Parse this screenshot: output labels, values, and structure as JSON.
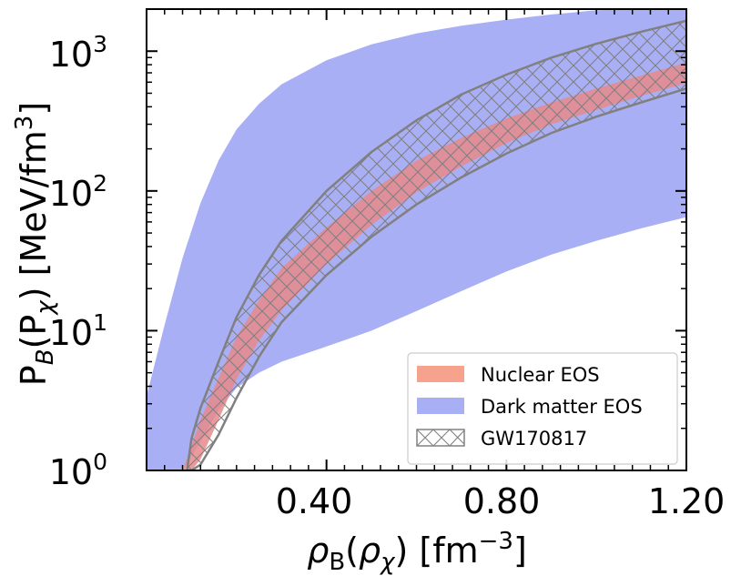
{
  "chart_data": {
    "type": "area",
    "title": "",
    "xlabel": "ρB(ρχ) [fm⁻³]",
    "ylabel": "PB(Pχ) [MeV/fm³]",
    "xlim": [
      0.0,
      1.2
    ],
    "ylim": [
      1,
      2000
    ],
    "yscale": "log",
    "x_ticks": [
      {
        "value": 0.4,
        "label": "0.40"
      },
      {
        "value": 0.8,
        "label": "0.80"
      },
      {
        "value": 1.2,
        "label": "1.20"
      }
    ],
    "y_ticks": [
      {
        "value": 1,
        "base": "10",
        "exp": "0"
      },
      {
        "value": 10,
        "base": "10",
        "exp": "1"
      },
      {
        "value": 100,
        "base": "10",
        "exp": "2"
      },
      {
        "value": 1000,
        "base": "10",
        "exp": "3"
      }
    ],
    "x_label_parts": {
      "rho": "ρ",
      "sub_b": "B",
      "rho2": "ρ",
      "chi": "χ",
      "unit": "fm",
      "exp": "−3"
    },
    "y_label_parts": {
      "p": "P",
      "sub_b": "B",
      "p2": "P",
      "chi": "χ",
      "unit": "MeV/fm",
      "exp": "3"
    },
    "series": [
      {
        "name": "Dark matter EOS",
        "color": "#a9aff5",
        "x": [
          0.0,
          0.04,
          0.08,
          0.12,
          0.16,
          0.2,
          0.25,
          0.3,
          0.4,
          0.5,
          0.6,
          0.7,
          0.8,
          0.9,
          1.0,
          1.1,
          1.2
        ],
        "lower": [
          1.0,
          1.0,
          1.0,
          1.6,
          2.7,
          3.9,
          5.0,
          6.0,
          7.7,
          10.0,
          13.8,
          19.2,
          26.5,
          35.0,
          44.0,
          54.0,
          65.0
        ],
        "upper": [
          3.4,
          11.0,
          33.0,
          82.0,
          165.0,
          275.0,
          420.0,
          580.0,
          860.0,
          1120.0,
          1340.0,
          1520.0,
          1680.0,
          1830.0,
          1960.0,
          2000.0,
          2000.0
        ]
      },
      {
        "name": "Nuclear EOS",
        "color": "#f7a28c",
        "x": [
          0.08,
          0.1,
          0.12,
          0.16,
          0.2,
          0.25,
          0.3,
          0.4,
          0.5,
          0.6,
          0.7,
          0.8,
          0.9,
          1.0,
          1.1,
          1.2
        ],
        "lower": [
          1.0,
          1.0,
          1.2,
          2.3,
          4.5,
          8.5,
          14.0,
          30.0,
          57.0,
          98.0,
          150.0,
          220.0,
          300.0,
          380.0,
          480.0,
          590.0
        ],
        "upper": [
          1.0,
          1.5,
          2.3,
          4.6,
          9.0,
          16.5,
          28.0,
          55.0,
          100.0,
          165.0,
          240.0,
          330.0,
          430.0,
          540.0,
          670.0,
          830.0
        ]
      },
      {
        "name": "GW170817",
        "color": "#808080",
        "x": [
          0.09,
          0.1,
          0.12,
          0.16,
          0.2,
          0.25,
          0.3,
          0.4,
          0.5,
          0.6,
          0.7,
          0.8,
          0.9,
          1.0,
          1.1,
          1.2
        ],
        "lower": [
          1.0,
          1.0,
          1.1,
          1.8,
          3.3,
          6.5,
          11.5,
          25.0,
          47.0,
          80.0,
          125.0,
          185.0,
          260.0,
          340.0,
          430.0,
          540.0
        ],
        "upper": [
          1.0,
          1.7,
          2.8,
          6.0,
          12.5,
          25.0,
          44.0,
          100.0,
          190.0,
          320.0,
          490.0,
          680.0,
          900.0,
          1130.0,
          1380.0,
          1650.0
        ]
      }
    ],
    "legend": {
      "location": "lower-right",
      "entries": [
        "Nuclear EOS",
        "Dark matter EOS",
        "GW170817"
      ]
    }
  }
}
